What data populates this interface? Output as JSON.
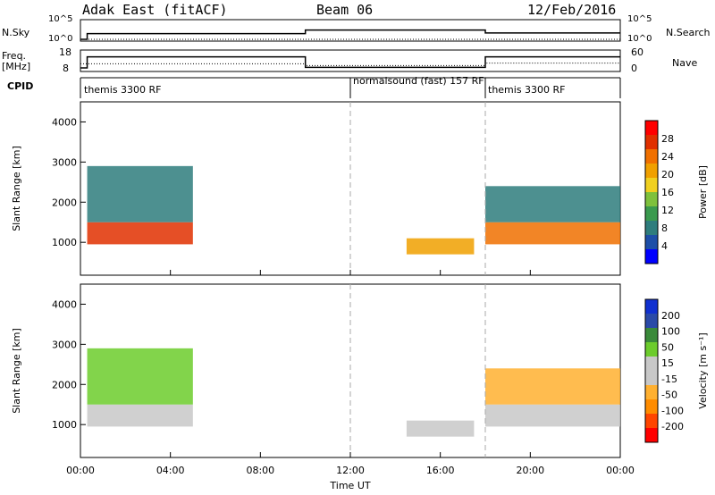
{
  "header": {
    "radar": "Adak East (fitACF)",
    "beam": "Beam 06",
    "date": "12/Feb/2016"
  },
  "left_labels": {
    "nsky": "N.Sky",
    "freq": "Freq.",
    "freq_unit": "[MHz]",
    "cpid": "CPID"
  },
  "right_labels": {
    "nsearch": "N.Search",
    "nave": "Nave"
  },
  "noise_ticks": {
    "top": "10^5",
    "bottom": "10^0"
  },
  "freq_ticks": [
    "18",
    "8"
  ],
  "nave_ticks": [
    "60",
    "0"
  ],
  "cpid_segments": [
    {
      "label": "themis 3300 RF",
      "start": 0,
      "end": 12
    },
    {
      "label": "normalsound (fast) 157 RF",
      "start": 12,
      "end": 18
    },
    {
      "label": "themis 3300 RF",
      "start": 18,
      "end": 24
    }
  ],
  "colors": {
    "power_scale": [
      "#0000ff",
      "#1d4fa8",
      "#2e7d7d",
      "#3a9a4e",
      "#7ec13c",
      "#f0d020",
      "#f0a000",
      "#f07000",
      "#e03000",
      "#ff0000"
    ],
    "velocity_scale": [
      "#ff0000",
      "#ff4500",
      "#ff8c00",
      "#ffb030",
      "#c8c8c8",
      "#c8c8c8",
      "#6ccc2c",
      "#3a8a3a",
      "#2a4aa8",
      "#1030d0"
    ]
  },
  "chart_data": [
    {
      "type": "line",
      "title": "",
      "panel": "noise",
      "xlim": [
        0,
        24
      ],
      "series": [
        {
          "name": "N.Sky",
          "x": [
            0,
            0.3,
            0.3,
            10,
            10,
            18,
            18,
            24
          ],
          "values": [
            1,
            1,
            40,
            40,
            400,
            400,
            60,
            60
          ]
        },
        {
          "name": "N.Search",
          "x": [
            0,
            24
          ],
          "values": [
            1,
            1
          ]
        }
      ]
    },
    {
      "type": "line",
      "panel": "frequency",
      "xlim": [
        0,
        24
      ],
      "ylabel": "Freq. [MHz]",
      "series": [
        {
          "name": "Freq.",
          "x": [
            0,
            0.3,
            0.3,
            10,
            10,
            18,
            18,
            24
          ],
          "values": [
            9,
            9,
            15.2,
            15.2,
            9.3,
            9.3,
            15.2,
            15.2
          ]
        },
        {
          "name": "Nave",
          "x": [
            0,
            10,
            10,
            18,
            18,
            24
          ],
          "values": [
            20,
            20,
            14,
            14,
            22,
            22
          ]
        }
      ]
    },
    {
      "type": "heatmap",
      "panel": "power",
      "xlabel": "",
      "ylabel": "Slant Range [km]",
      "xlim": [
        0,
        24
      ],
      "ylim": [
        180,
        4500
      ],
      "x_ticks": [
        "00:00",
        "04:00",
        "08:00",
        "12:00",
        "16:00",
        "20:00",
        "00:00"
      ],
      "y_ticks": [
        1000,
        2000,
        3000,
        4000
      ],
      "colorbar": {
        "label": "Power [dB]",
        "ticks": [
          4,
          8,
          12,
          16,
          20,
          24,
          28
        ],
        "range": [
          0,
          30
        ]
      },
      "bands": [
        {
          "t0": 0.3,
          "t1": 5.0,
          "r0": 950,
          "r1": 1500,
          "value": 24
        },
        {
          "t0": 0.3,
          "t1": 5.0,
          "r0": 1500,
          "r1": 2900,
          "value": 6
        },
        {
          "t0": 14.5,
          "t1": 17.5,
          "r0": 700,
          "r1": 1100,
          "value": 18
        },
        {
          "t0": 18.0,
          "t1": 24.0,
          "r0": 950,
          "r1": 1500,
          "value": 22
        },
        {
          "t0": 18.0,
          "t1": 24.0,
          "r0": 1500,
          "r1": 2400,
          "value": 6
        }
      ]
    },
    {
      "type": "heatmap",
      "panel": "velocity",
      "xlabel": "Time UT",
      "ylabel": "Slant Range [km]",
      "xlim": [
        0,
        24
      ],
      "ylim": [
        180,
        4500
      ],
      "x_ticks": [
        "00:00",
        "04:00",
        "08:00",
        "12:00",
        "16:00",
        "20:00",
        "00:00"
      ],
      "y_ticks": [
        1000,
        2000,
        3000,
        4000
      ],
      "colorbar": {
        "label": "Velocity [m s⁻¹]",
        "ticks": [
          200,
          100,
          50,
          15,
          -15,
          -50,
          -100,
          -200
        ]
      },
      "bands": [
        {
          "t0": 0.3,
          "t1": 5.0,
          "r0": 950,
          "r1": 1500,
          "value": 0
        },
        {
          "t0": 0.3,
          "t1": 5.0,
          "r0": 1500,
          "r1": 2900,
          "value": 30
        },
        {
          "t0": 14.5,
          "t1": 17.5,
          "r0": 700,
          "r1": 1100,
          "value": 0
        },
        {
          "t0": 18.0,
          "t1": 24.0,
          "r0": 950,
          "r1": 1500,
          "value": 0
        },
        {
          "t0": 18.0,
          "t1": 24.0,
          "r0": 1500,
          "r1": 2400,
          "value": -20
        }
      ]
    }
  ]
}
